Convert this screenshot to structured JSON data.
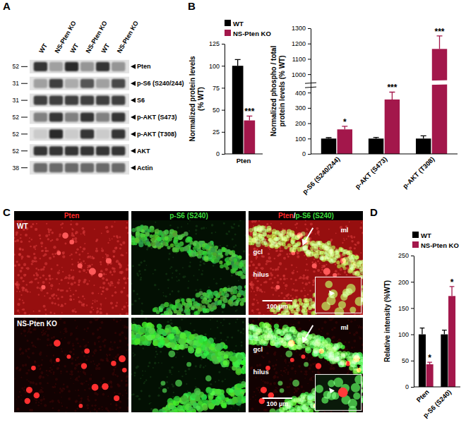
{
  "panel_labels": [
    "A",
    "B",
    "C",
    "D"
  ],
  "blot": {
    "lanes": [
      "WT",
      "NS-Pten KO",
      "WT",
      "NS-Pten KO",
      "WT",
      "NS-Pten KO"
    ],
    "rows": [
      {
        "label": "Pten",
        "mw": 52,
        "signal": [
          0.85,
          0.35,
          0.9,
          0.4,
          0.85,
          0.4
        ]
      },
      {
        "label": "p-S6 (S240/244)",
        "mw": 31,
        "signal": [
          0.35,
          0.8,
          0.3,
          0.7,
          0.35,
          0.75
        ]
      },
      {
        "label": "S6",
        "mw": 31,
        "signal": [
          0.8,
          0.8,
          0.8,
          0.8,
          0.8,
          0.8
        ]
      },
      {
        "label": "p-AKT (S473)",
        "mw": 52,
        "signal": [
          0.5,
          0.85,
          0.5,
          0.85,
          0.5,
          0.85
        ]
      },
      {
        "label": "p-AKT (T308)",
        "mw": 52,
        "signal": [
          0.15,
          0.9,
          0.15,
          0.85,
          0.15,
          0.85
        ]
      },
      {
        "label": "AKT",
        "mw": 52,
        "signal": [
          0.85,
          0.85,
          0.85,
          0.85,
          0.85,
          0.85
        ]
      },
      {
        "label": "Actin",
        "mw": 38,
        "signal": [
          0.6,
          0.6,
          0.6,
          0.6,
          0.6,
          0.6
        ]
      }
    ]
  },
  "chart_data": [
    {
      "type": "bar",
      "categories": [
        "Pten"
      ],
      "series": [
        {
          "name": "WT",
          "color": "#000000",
          "values": [
            100
          ],
          "errors": [
            7
          ]
        },
        {
          "name": "NS-Pten KO",
          "color": "#a3174b",
          "values": [
            38
          ],
          "errors": [
            5
          ],
          "significance": [
            "***"
          ]
        }
      ],
      "ylim": [
        0,
        125
      ],
      "yticks": [
        0,
        25,
        50,
        75,
        100,
        125
      ],
      "y_label": [
        "Normalized protein levels",
        "(% WT)"
      ],
      "legend": "upper left"
    },
    {
      "type": "bar",
      "categories": [
        "p-S6 (S240/244)",
        "p-AKT (S473)",
        "p-AKT (T308)"
      ],
      "series": [
        {
          "color": "#000000",
          "values": [
            100,
            100,
            100
          ],
          "errors": [
            6,
            8,
            18
          ]
        },
        {
          "color": "#a3174b",
          "values": [
            160,
            355,
            1165
          ],
          "errors": [
            20,
            60,
            85
          ],
          "significance": [
            "*",
            "***",
            "***"
          ]
        }
      ],
      "ylim": [
        0,
        1300
      ],
      "yticks": [
        0,
        100,
        200,
        300,
        400,
        1000,
        1100,
        1200,
        1300
      ],
      "y_label": [
        "Normalized phospho / total",
        "protein levels (% WT)"
      ]
    },
    {
      "type": "bar",
      "categories": [
        "Pten",
        "p-S6 (S240)"
      ],
      "series": [
        {
          "name": "WT",
          "color": "#000000",
          "values": [
            100,
            100
          ],
          "errors": [
            12,
            8
          ]
        },
        {
          "name": "NS-Pten KO",
          "color": "#a3174b",
          "values": [
            43,
            173
          ],
          "errors": [
            4,
            18
          ],
          "significance": [
            "*",
            "*"
          ]
        }
      ],
      "ylim": [
        0,
        250
      ],
      "yticks": [
        0,
        50,
        100,
        150,
        200,
        250
      ],
      "y_label": [
        "Relative intensity (%WT)"
      ],
      "legend": "upper right"
    }
  ],
  "micrographs": {
    "columns": [
      "Pten",
      "p-S6 (S240)"
    ],
    "separator": "/",
    "rows": [
      "WT",
      "NS-Pten KO"
    ],
    "regions": [
      "ml",
      "gcl",
      "hilus"
    ],
    "scale_bar": "100 µm"
  }
}
